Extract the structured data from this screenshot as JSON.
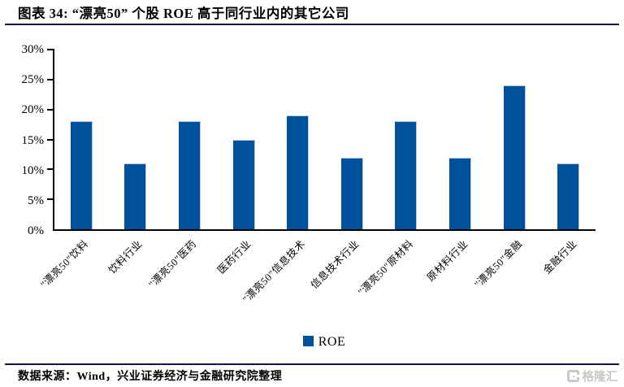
{
  "header": {
    "title": "图表 34: “漂亮50” 个股 ROE 高于同行业内的其它公司"
  },
  "chart_data": {
    "type": "bar",
    "title": "",
    "categories": [
      "\"漂亮50\"饮料",
      "饮料行业",
      "\"漂亮50\"医药",
      "医药行业",
      "\"漂亮50\"信息技术",
      "信息技术行业",
      "\"漂亮50\"原材料",
      "原材料行业",
      "\"漂亮50\"金融",
      "金融行业"
    ],
    "values": [
      18,
      11,
      18,
      15,
      19,
      12,
      18,
      12,
      24,
      11
    ],
    "unit": "%",
    "series_name": "ROE",
    "ylim": [
      0,
      30
    ],
    "yticks": [
      0,
      5,
      10,
      15,
      20,
      25,
      30
    ],
    "ytick_labels": [
      "0%",
      "5%",
      "10%",
      "15%",
      "20%",
      "25%",
      "30%"
    ],
    "bar_color": "#00519B",
    "legend": [
      "ROE"
    ],
    "legend_position": "bottom",
    "grid": false
  },
  "footer": {
    "source": "数据来源：Wind，兴业证券经济与金融研究院整理",
    "logo_text": "格隆汇"
  }
}
